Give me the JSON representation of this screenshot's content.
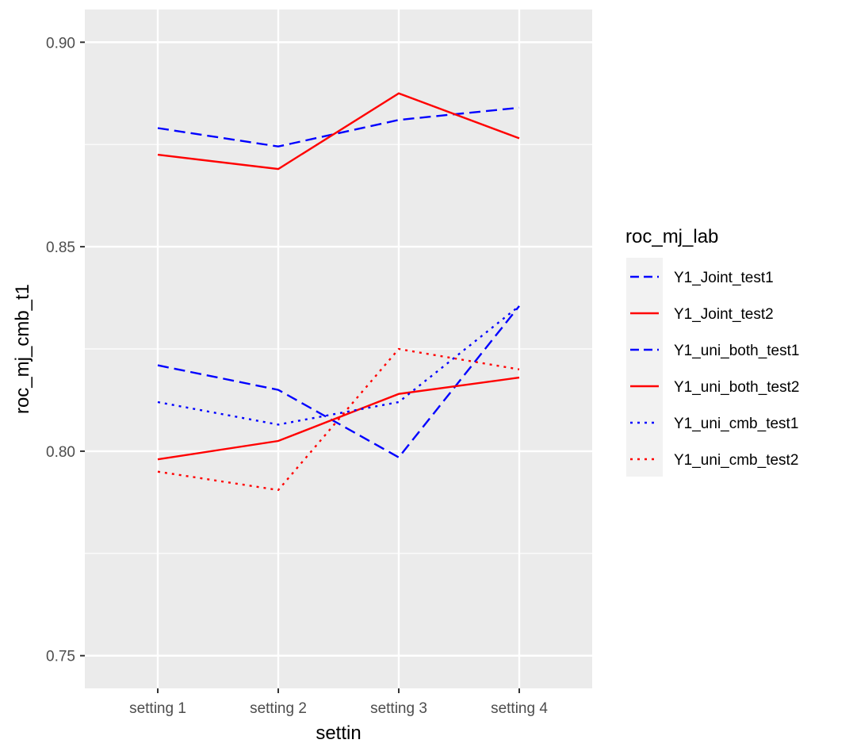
{
  "chart_data": {
    "type": "line",
    "xlabel": "settin",
    "ylabel": "roc_mj_cmb_t1",
    "categories": [
      "setting 1",
      "setting 2",
      "setting 3",
      "setting 4"
    ],
    "ylim": [
      0.742,
      0.908
    ],
    "yticks": [
      0.75,
      0.8,
      0.85,
      0.9
    ],
    "ytick_labels": [
      "0.75",
      "0.80",
      "0.85",
      "0.90"
    ],
    "grid": true,
    "legend": {
      "title": "roc_mj_lab",
      "position": "right"
    },
    "series": [
      {
        "name": "Y1_Joint_test1",
        "color": "#0000ff",
        "linetype": "dashed",
        "values": [
          0.879,
          0.8745,
          0.881,
          0.884
        ]
      },
      {
        "name": "Y1_Joint_test2",
        "color": "#ff0000",
        "linetype": "solid",
        "values": [
          0.8725,
          0.869,
          0.8875,
          0.8765
        ]
      },
      {
        "name": "Y1_uni_both_test1",
        "color": "#0000ff",
        "linetype": "dashed",
        "values": [
          0.821,
          0.815,
          0.7985,
          0.8355
        ]
      },
      {
        "name": "Y1_uni_both_test2",
        "color": "#ff0000",
        "linetype": "solid",
        "values": [
          0.798,
          0.8025,
          0.814,
          0.818
        ]
      },
      {
        "name": "Y1_uni_cmb_test1",
        "color": "#0000ff",
        "linetype": "dotted",
        "values": [
          0.812,
          0.8065,
          0.812,
          0.8355
        ]
      },
      {
        "name": "Y1_uni_cmb_test2",
        "color": "#ff0000",
        "linetype": "dotted",
        "values": [
          0.795,
          0.7905,
          0.825,
          0.82
        ]
      }
    ]
  }
}
